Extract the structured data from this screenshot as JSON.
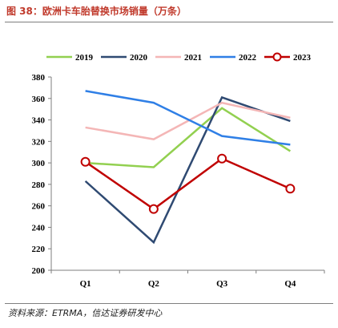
{
  "title": "图 38：欧洲卡车胎替换市场销量（万条）",
  "source": "资料来源：ETRMA，信达证券研发中心",
  "chart_data": {
    "type": "line",
    "categories": [
      "Q1",
      "Q2",
      "Q3",
      "Q4"
    ],
    "ylim": [
      200,
      380
    ],
    "yticks": [
      200,
      220,
      240,
      260,
      280,
      300,
      320,
      340,
      360,
      380
    ],
    "legend_position": "top",
    "grid": false,
    "series": [
      {
        "name": "2019",
        "values": [
          300,
          296,
          351,
          311
        ],
        "color": "#92d050",
        "marker": false
      },
      {
        "name": "2020",
        "values": [
          283,
          226,
          361,
          339
        ],
        "color": "#2f4a72",
        "marker": false
      },
      {
        "name": "2021",
        "values": [
          333,
          322,
          356,
          342
        ],
        "color": "#f4b6b6",
        "marker": false
      },
      {
        "name": "2022",
        "values": [
          367,
          356,
          325,
          317
        ],
        "color": "#2f7fe6",
        "marker": false
      },
      {
        "name": "2023",
        "values": [
          301,
          257,
          304,
          276
        ],
        "color": "#c00000",
        "marker": true
      }
    ]
  }
}
